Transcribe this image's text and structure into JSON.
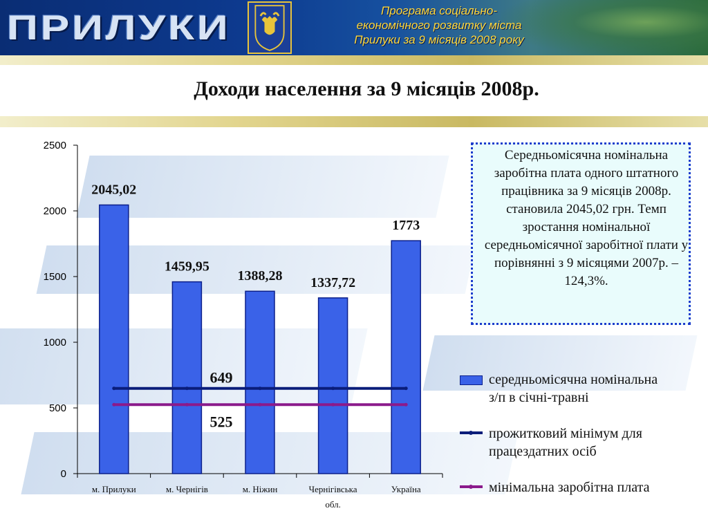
{
  "header": {
    "city": "ПРИЛУКИ",
    "program_lines": [
      "Програма соціально-",
      "економічного розвитку міста",
      "Прилуки за 9 місяців 2008 року"
    ]
  },
  "page_title": "Доходи населення за 9 місяців 2008р.",
  "info_box": {
    "text": "Середньомісячна номінальна заробітна плата одного штатного працівника за 9 місяців 2008р. становила 2045,02 грн. Темп зростання номінальної середньомісячної заробітної плати у порівнянні з 9 місяцями 2007р. – 124,3%."
  },
  "legend": {
    "bar": "середньомісячна номінальна з/п в січні-травні",
    "line1": "прожитковий мінімум для працездатних осіб",
    "line2": "мінімальна заробітна плата"
  },
  "colors": {
    "bar_fill": "#3a62e8",
    "bar_border": "#0b1f8a",
    "living_minimum_line": "#0a1d7a",
    "minimum_wage_line": "#8b1a8b"
  },
  "chart_data": {
    "type": "bar",
    "categories": [
      "м. Прилуки",
      "м. Чернігів",
      "м. Ніжин",
      "Чернігівська обл.",
      "Україна"
    ],
    "values": [
      2045.02,
      1459.95,
      1388.28,
      1337.72,
      1773
    ],
    "value_labels": [
      "2045,02",
      "1459,95",
      "1388,28",
      "1337,72",
      "1773"
    ],
    "ylim": [
      0,
      2500
    ],
    "yticks": [
      0,
      500,
      1000,
      1500,
      2000,
      2500
    ],
    "lines": [
      {
        "value": 649,
        "label": "649"
      },
      {
        "value": 525,
        "label": "525"
      }
    ],
    "grid": false,
    "legend_position": "right"
  }
}
